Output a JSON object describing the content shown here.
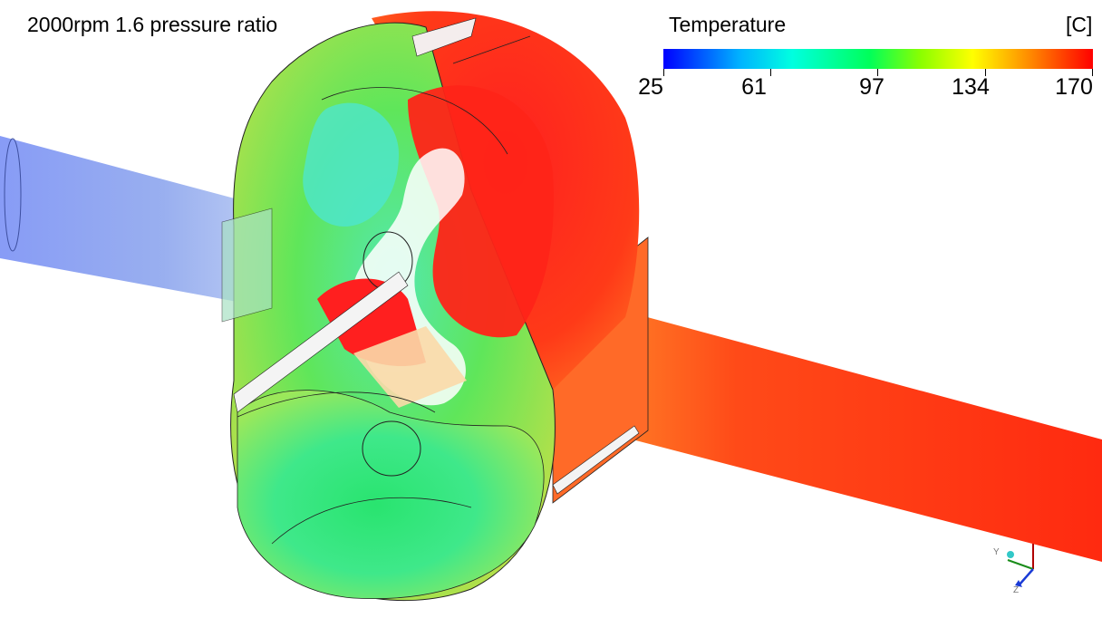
{
  "title": "2000rpm 1.6 pressure ratio",
  "legend": {
    "title": "Temperature",
    "unit": "[C]",
    "ticks": [
      "25",
      "61",
      "97",
      "134",
      "170"
    ]
  },
  "axis_triad": {
    "labels": [
      "Y",
      "Z"
    ]
  },
  "colors": {
    "cold": "#0000ff",
    "mid": "#00ff5a",
    "hot": "#ff0000"
  }
}
